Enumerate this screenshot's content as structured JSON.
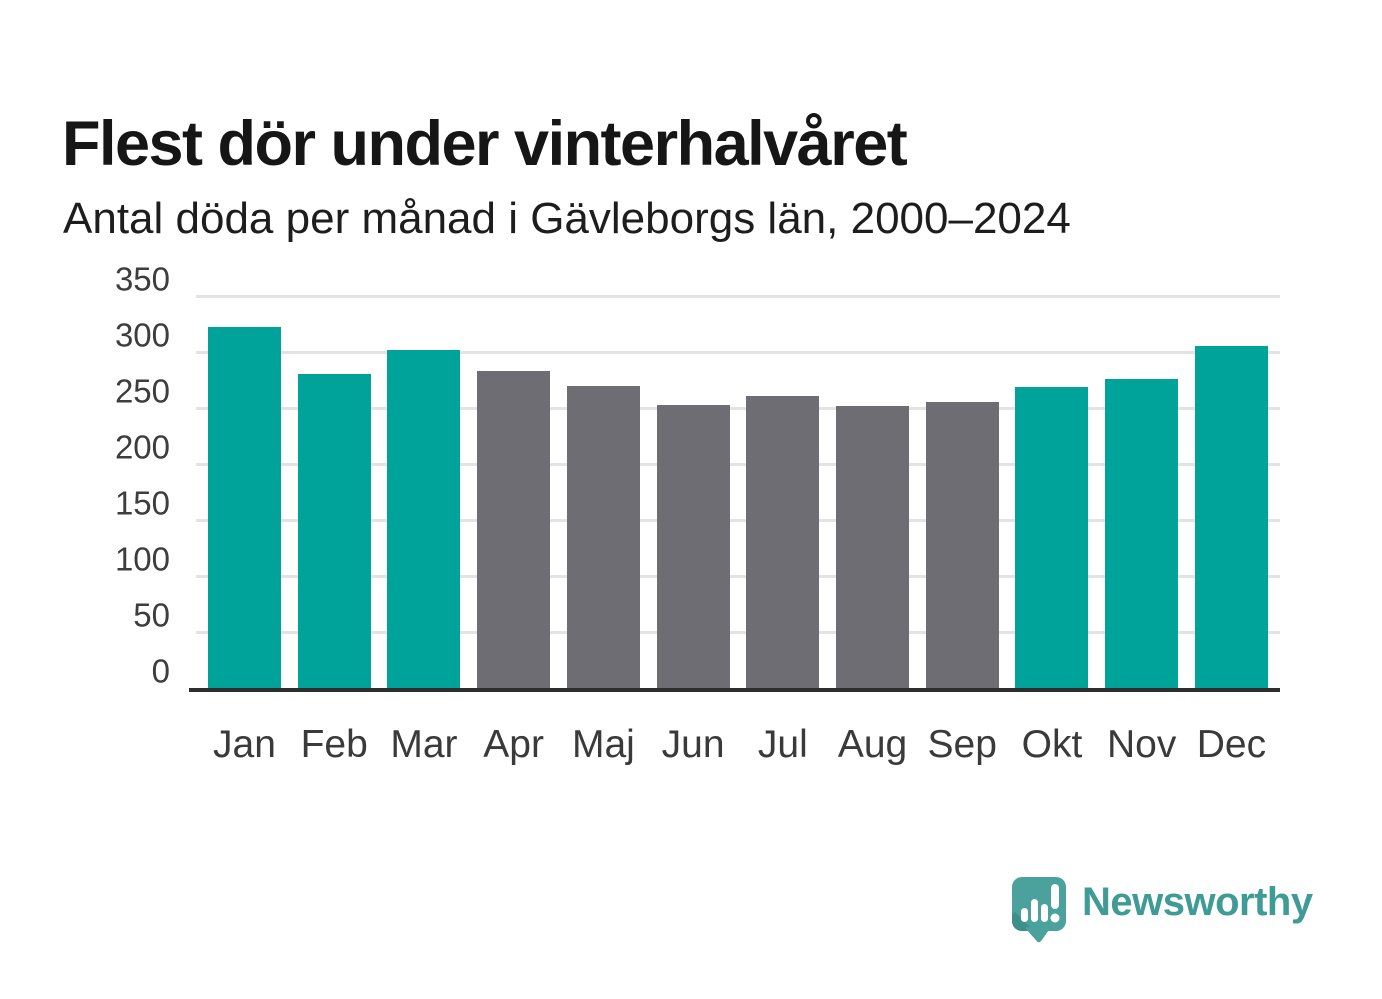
{
  "header": {
    "title": "Flest dör under vinterhalvåret",
    "subtitle": "Antal döda per månad i Gävleborgs län, 2000–2024"
  },
  "chart_data": {
    "type": "bar",
    "title": "Flest dör under vinterhalvåret",
    "subtitle": "Antal döda per månad i Gävleborgs län, 2000–2024",
    "categories": [
      "Jan",
      "Feb",
      "Mar",
      "Apr",
      "Maj",
      "Jun",
      "Jul",
      "Aug",
      "Sep",
      "Okt",
      "Nov",
      "Dec"
    ],
    "values": [
      322,
      280,
      302,
      283,
      270,
      253,
      261,
      252,
      255,
      269,
      276,
      305
    ],
    "bar_colors": [
      "#00a39a",
      "#00a39a",
      "#00a39a",
      "#6d6d73",
      "#6d6d73",
      "#6d6d73",
      "#6d6d73",
      "#6d6d73",
      "#6d6d73",
      "#00a39a",
      "#00a39a",
      "#00a39a"
    ],
    "highlight_color": "#00a39a",
    "muted_color": "#6d6d73",
    "xlabel": "",
    "ylabel": "",
    "ylim": [
      0,
      350
    ],
    "yticks": [
      0,
      50,
      100,
      150,
      200,
      250,
      300,
      350
    ],
    "grid": true,
    "legend": false
  },
  "footer": {
    "brand": "Newsworthy",
    "brand_color": "#3f9b95",
    "logo_color": "#4ba29c"
  }
}
